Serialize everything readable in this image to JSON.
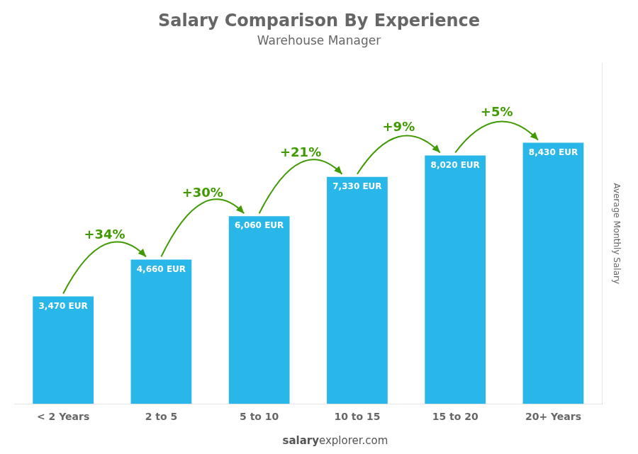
{
  "chart_data": {
    "type": "bar",
    "title": "Salary Comparison By Experience",
    "subtitle": "Warehouse Manager",
    "ylabel": "Average Monthly Salary",
    "categories": [
      "< 2 Years",
      "2 to 5",
      "5 to 10",
      "10 to 15",
      "15 to 20",
      "20+ Years"
    ],
    "values": [
      3470,
      4660,
      6060,
      7330,
      8020,
      8430
    ],
    "value_labels": [
      "3,470 EUR",
      "4,660 EUR",
      "6,060 EUR",
      "7,330 EUR",
      "8,020 EUR",
      "8,430 EUR"
    ],
    "data_labels": true,
    "color": "#29b6e8",
    "ylim": [
      0,
      11000
    ],
    "grid": false,
    "tick_labels": "x",
    "annotations": [
      {
        "from": "< 2 Years",
        "to": "2 to 5",
        "text": "+34%"
      },
      {
        "from": "2 to 5",
        "to": "5 to 10",
        "text": "+30%"
      },
      {
        "from": "5 to 10",
        "to": "10 to 15",
        "text": "+21%"
      },
      {
        "from": "10 to 15",
        "to": "15 to 20",
        "text": "+9%"
      },
      {
        "from": "15 to 20",
        "to": "20+ Years",
        "text": "+5%"
      }
    ],
    "footer": [
      "salary",
      "explorer.com"
    ]
  }
}
